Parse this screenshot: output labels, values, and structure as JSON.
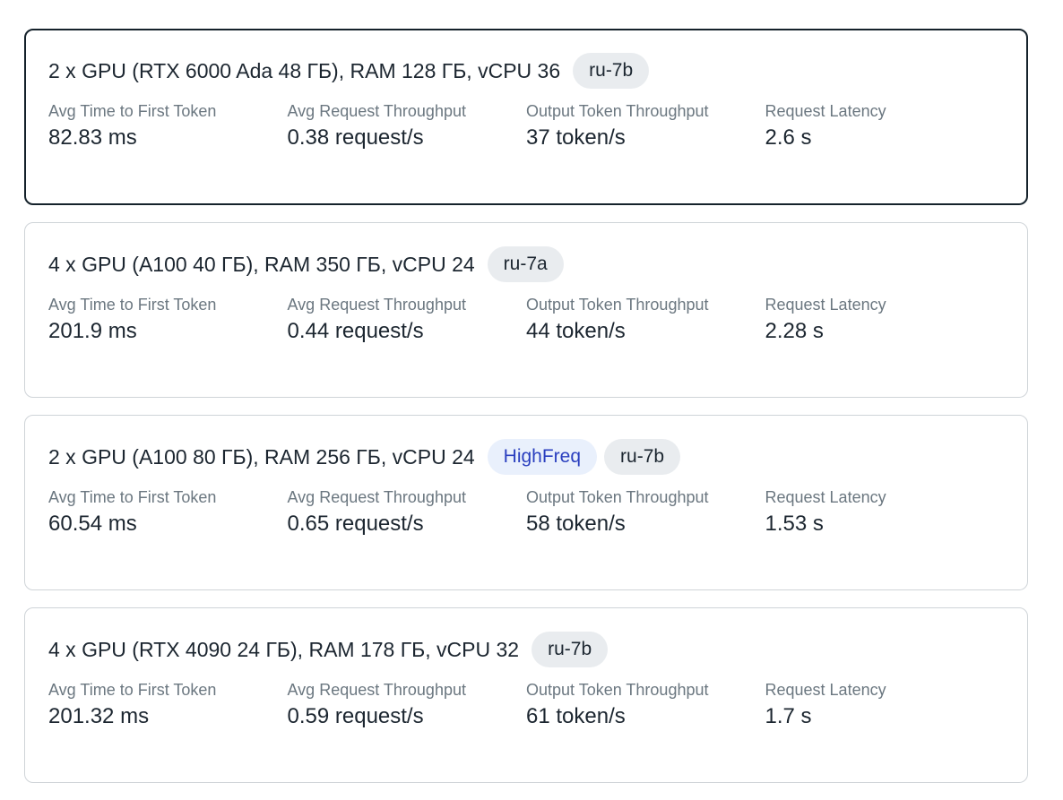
{
  "metric_labels": [
    "Avg Time to First Token",
    "Avg Request Throughput",
    "Output Token Throughput",
    "Request Latency"
  ],
  "cards": [
    {
      "title": "2 x GPU (RTX 6000 Ada 48 ГБ), RAM 128 ГБ, vCPU 36",
      "selected": true,
      "tags": [
        {
          "text": "ru-7b",
          "style": "gray"
        }
      ],
      "values": [
        "82.83 ms",
        "0.38 request/s",
        "37 token/s",
        "2.6 s"
      ]
    },
    {
      "title": "4 x GPU (A100 40 ГБ), RAM 350 ГБ, vCPU 24",
      "selected": false,
      "tags": [
        {
          "text": "ru-7a",
          "style": "gray"
        }
      ],
      "values": [
        "201.9 ms",
        "0.44 request/s",
        "44 token/s",
        "2.28 s"
      ]
    },
    {
      "title": "2 x GPU (A100 80 ГБ), RAM 256 ГБ, vCPU 24",
      "selected": false,
      "tags": [
        {
          "text": "HighFreq",
          "style": "blue"
        },
        {
          "text": "ru-7b",
          "style": "gray"
        }
      ],
      "values": [
        "60.54 ms",
        "0.65 request/s",
        "58 token/s",
        "1.53 s"
      ]
    },
    {
      "title": "4 x GPU (RTX 4090 24 ГБ), RAM 178 ГБ, vCPU 32",
      "selected": false,
      "tags": [
        {
          "text": "ru-7b",
          "style": "gray"
        }
      ],
      "values": [
        "201.32 ms",
        "0.59 request/s",
        "61 token/s",
        "1.7 s"
      ]
    }
  ]
}
